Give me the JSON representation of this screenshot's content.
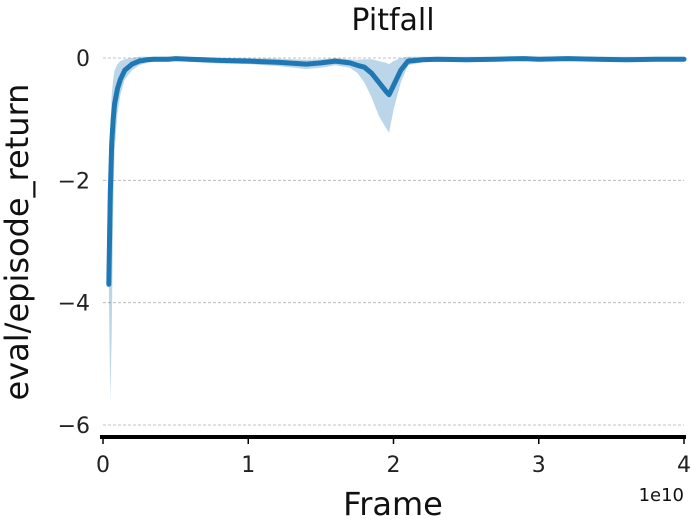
{
  "chart_data": {
    "type": "line",
    "title": "Pitfall",
    "xlabel": "Frame",
    "ylabel": "eval/episode_return",
    "x_offset_label": "1e10",
    "xlim": [
      0,
      4
    ],
    "ylim": [
      -6.2,
      0.15
    ],
    "x_ticks": [
      0,
      1,
      2,
      3,
      4
    ],
    "x_tick_labels": [
      "0",
      "1",
      "2",
      "3",
      "4"
    ],
    "y_ticks": [
      0,
      -2,
      -4,
      -6
    ],
    "y_tick_labels": [
      "0",
      "−2",
      "−4",
      "−6"
    ],
    "grid": "horizontal-dashed",
    "line_color": "#1f77b4",
    "band_color": "#1f77b4",
    "series": [
      {
        "x": [
          0.04,
          0.05,
          0.06,
          0.07,
          0.08,
          0.1,
          0.12,
          0.15,
          0.2,
          0.25,
          0.3,
          0.35,
          0.4,
          0.45,
          0.5,
          0.6,
          0.7,
          0.8,
          1.0,
          1.2,
          1.4,
          1.5,
          1.6,
          1.7,
          1.75,
          1.8,
          1.85,
          1.9,
          1.95,
          1.97,
          2.0,
          2.05,
          2.1,
          2.2,
          2.3,
          2.5,
          2.7,
          2.9,
          3.0,
          3.2,
          3.4,
          3.6,
          3.8,
          4.0
        ],
        "values": [
          -3.7,
          -2.2,
          -1.4,
          -1.0,
          -0.75,
          -0.5,
          -0.35,
          -0.2,
          -0.1,
          -0.05,
          -0.03,
          -0.02,
          -0.02,
          -0.02,
          -0.01,
          -0.02,
          -0.03,
          -0.04,
          -0.05,
          -0.07,
          -0.1,
          -0.08,
          -0.05,
          -0.08,
          -0.12,
          -0.15,
          -0.25,
          -0.4,
          -0.55,
          -0.6,
          -0.45,
          -0.2,
          -0.05,
          -0.03,
          -0.02,
          -0.03,
          -0.02,
          -0.01,
          -0.02,
          -0.01,
          -0.02,
          -0.03,
          -0.02,
          -0.02
        ],
        "lower": [
          -3.7,
          -5.6,
          -4.5,
          -2.5,
          -1.5,
          -0.9,
          -0.6,
          -0.35,
          -0.2,
          -0.12,
          -0.08,
          -0.06,
          -0.06,
          -0.05,
          -0.04,
          -0.06,
          -0.08,
          -0.09,
          -0.1,
          -0.13,
          -0.18,
          -0.16,
          -0.12,
          -0.16,
          -0.24,
          -0.4,
          -0.65,
          -0.95,
          -1.15,
          -1.22,
          -0.85,
          -0.4,
          -0.12,
          -0.07,
          -0.05,
          -0.06,
          -0.05,
          -0.03,
          -0.05,
          -0.03,
          -0.05,
          -0.06,
          -0.05,
          -0.05
        ],
        "upper": [
          -3.7,
          -1.2,
          -0.6,
          -0.35,
          -0.2,
          -0.1,
          -0.05,
          -0.02,
          0.0,
          0.02,
          0.02,
          0.02,
          0.02,
          0.02,
          0.02,
          0.01,
          0.01,
          0.0,
          0.0,
          -0.01,
          -0.03,
          -0.02,
          0.0,
          -0.02,
          -0.03,
          -0.02,
          -0.02,
          -0.05,
          -0.08,
          -0.1,
          -0.05,
          0.0,
          0.02,
          0.02,
          0.02,
          0.02,
          0.02,
          0.03,
          0.02,
          0.03,
          0.02,
          0.02,
          0.02,
          0.02
        ]
      }
    ]
  }
}
